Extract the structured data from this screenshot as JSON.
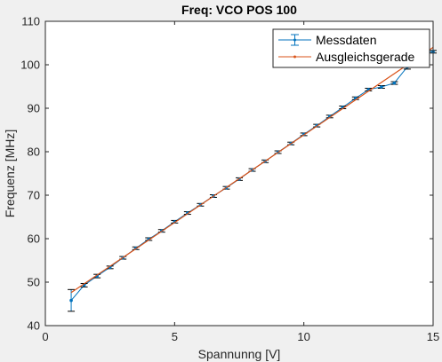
{
  "chart_data": {
    "type": "line",
    "title": "Freq: VCO POS 100",
    "xlabel": "Spannunng [V]",
    "ylabel": "Frequenz [MHz]",
    "xlim": [
      0,
      15
    ],
    "ylim": [
      40,
      110
    ],
    "xticks": [
      0,
      5,
      10,
      15
    ],
    "yticks": [
      40,
      50,
      60,
      70,
      80,
      90,
      100,
      110
    ],
    "grid": false,
    "legend_position": "top-right",
    "series": [
      {
        "name": "Messdaten",
        "color": "#0072bd",
        "x": [
          1,
          1.5,
          2,
          2.5,
          3,
          3.5,
          4,
          4.5,
          5,
          5.5,
          6,
          6.5,
          7,
          7.5,
          8,
          8.5,
          9,
          9.5,
          10,
          10.5,
          11,
          11.5,
          12,
          12.5,
          13,
          13.5,
          14,
          14.5,
          15
        ],
        "y": [
          45.8,
          49.3,
          51.4,
          53.4,
          55.6,
          57.8,
          59.9,
          61.8,
          63.9,
          65.9,
          67.8,
          69.8,
          71.7,
          73.7,
          75.8,
          77.8,
          79.9,
          81.9,
          84.0,
          86.0,
          88.1,
          90.2,
          92.3,
          94.3,
          94.9,
          95.8,
          99.5,
          103.0,
          103.0
        ],
        "error": [
          2.5,
          0.4,
          0.4,
          0.3,
          0.3,
          0.3,
          0.3,
          0.3,
          0.3,
          0.3,
          0.3,
          0.3,
          0.3,
          0.3,
          0.3,
          0.3,
          0.3,
          0.3,
          0.3,
          0.3,
          0.3,
          0.3,
          0.3,
          0.3,
          0.3,
          0.3,
          0.5,
          0.3,
          0.3
        ]
      },
      {
        "name": "Ausgleichsgerade",
        "color": "#d95319",
        "x": [
          1,
          15
        ],
        "y": [
          47.6,
          104.0
        ]
      }
    ]
  }
}
